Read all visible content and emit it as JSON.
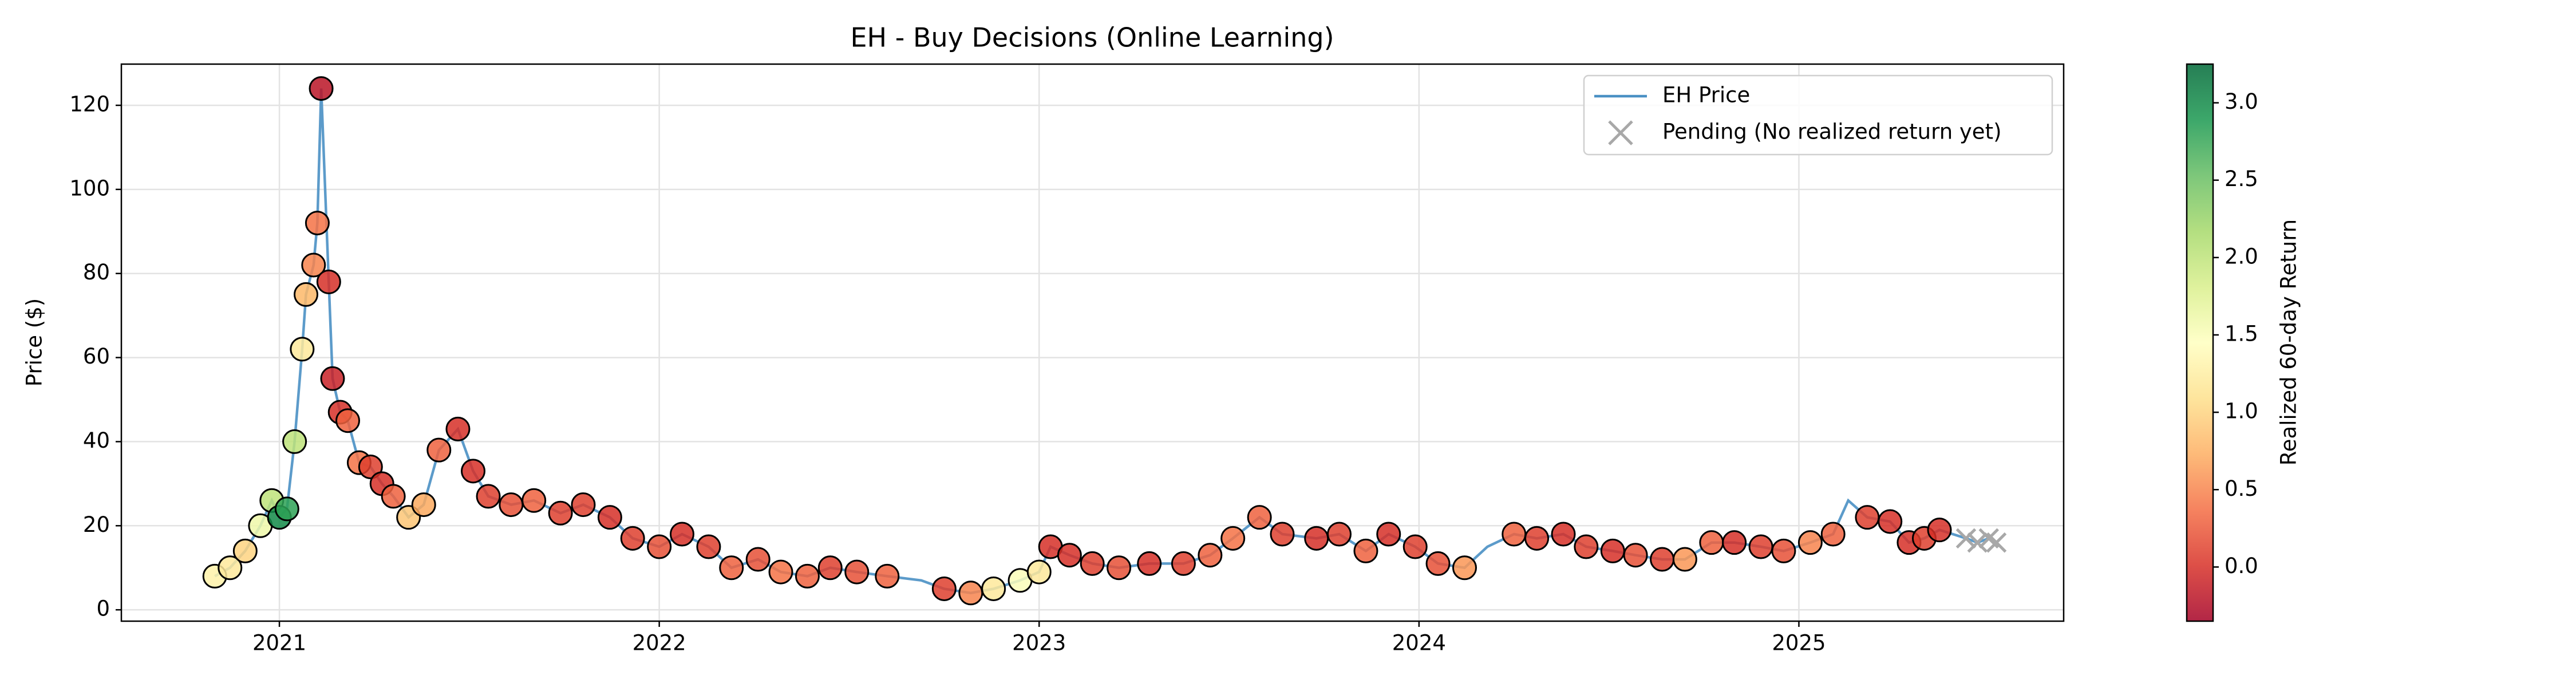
{
  "chart_data": {
    "type": "scatter",
    "title": "EH - Buy Decisions (Online Learning)",
    "y_label": "Price ($)",
    "xlim": [
      2020.584,
      2025.697
    ],
    "xticks": [
      2021,
      2022,
      2023,
      2024,
      2025
    ],
    "ylim": [
      -2.7,
      129.8
    ],
    "yticks": [
      0,
      20,
      40,
      60,
      80,
      100,
      120
    ],
    "grid": true,
    "legend": "upper right",
    "series": [
      {
        "name": "EH Price",
        "type": "line",
        "color": "#4a90c4",
        "x": [
          2020.83,
          2020.87,
          2020.91,
          2020.95,
          2020.98,
          2021.0,
          2021.02,
          2021.04,
          2021.06,
          2021.07,
          2021.09,
          2021.1,
          2021.11,
          2021.13,
          2021.14,
          2021.16,
          2021.18,
          2021.21,
          2021.24,
          2021.27,
          2021.3,
          2021.34,
          2021.38,
          2021.42,
          2021.47,
          2021.51,
          2021.55,
          2021.61,
          2021.67,
          2021.74,
          2021.8,
          2021.87,
          2021.93,
          2022.0,
          2022.06,
          2022.13,
          2022.19,
          2022.26,
          2022.32,
          2022.39,
          2022.45,
          2022.52,
          2022.6,
          2022.69,
          2022.75,
          2022.82,
          2022.88,
          2022.95,
          2023.0,
          2023.03,
          2023.08,
          2023.14,
          2023.21,
          2023.29,
          2023.38,
          2023.45,
          2023.51,
          2023.58,
          2023.64,
          2023.73,
          2023.79,
          2023.86,
          2023.92,
          2023.99,
          2024.05,
          2024.12,
          2024.18,
          2024.25,
          2024.31,
          2024.38,
          2024.44,
          2024.51,
          2024.57,
          2024.64,
          2024.7,
          2024.77,
          2024.83,
          2024.9,
          2024.96,
          2025.03,
          2025.09,
          2025.13,
          2025.18,
          2025.24,
          2025.29,
          2025.33,
          2025.37,
          2025.44,
          2025.47,
          2025.5,
          2025.52
        ],
        "values": [
          8,
          10,
          14,
          20,
          26,
          22,
          24,
          40,
          62,
          75,
          82,
          92,
          124,
          78,
          55,
          47,
          45,
          35,
          34,
          30,
          27,
          22,
          25,
          38,
          43,
          33,
          27,
          25,
          26,
          23,
          25,
          22,
          17,
          15,
          18,
          15,
          10,
          12,
          9,
          8,
          10,
          9,
          8,
          7,
          5,
          4,
          5,
          7,
          9,
          15,
          13,
          11,
          10,
          11,
          11,
          13,
          17,
          22,
          18,
          17,
          18,
          14,
          18,
          15,
          11,
          10,
          15,
          18,
          17,
          18,
          15,
          14,
          13,
          12,
          12,
          16,
          16,
          15,
          14,
          16,
          18,
          26,
          22,
          21,
          16,
          17,
          19,
          17,
          16,
          17,
          16
        ]
      },
      {
        "type": "scatter",
        "x": [
          2020.83,
          2020.87,
          2020.91,
          2020.95,
          2020.98,
          2021.0,
          2021.02,
          2021.04,
          2021.06,
          2021.07,
          2021.09,
          2021.1,
          2021.11,
          2021.13,
          2021.14,
          2021.16,
          2021.18,
          2021.21,
          2021.24,
          2021.27,
          2021.3,
          2021.34,
          2021.38,
          2021.42,
          2021.47,
          2021.51,
          2021.55,
          2021.61,
          2021.67,
          2021.74,
          2021.8,
          2021.87,
          2021.93,
          2022.0,
          2022.06,
          2022.13,
          2022.19,
          2022.26,
          2022.32,
          2022.39,
          2022.45,
          2022.52,
          2022.6,
          2022.75,
          2022.82,
          2022.88,
          2022.95,
          2023.0,
          2023.03,
          2023.08,
          2023.14,
          2023.21,
          2023.29,
          2023.38,
          2023.45,
          2023.51,
          2023.58,
          2023.64,
          2023.73,
          2023.79,
          2023.86,
          2023.92,
          2023.99,
          2024.05,
          2024.12,
          2024.25,
          2024.31,
          2024.38,
          2024.44,
          2024.51,
          2024.57,
          2024.64,
          2024.7,
          2024.77,
          2024.83,
          2024.9,
          2024.96,
          2025.03,
          2025.09,
          2025.18,
          2025.24,
          2025.29,
          2025.33,
          2025.37
        ],
        "values": [
          8,
          10,
          14,
          20,
          26,
          22,
          24,
          40,
          62,
          75,
          82,
          92,
          124,
          78,
          55,
          47,
          45,
          35,
          34,
          30,
          27,
          22,
          25,
          38,
          43,
          33,
          27,
          25,
          26,
          23,
          25,
          22,
          17,
          15,
          18,
          15,
          10,
          12,
          9,
          8,
          10,
          9,
          8,
          5,
          4,
          5,
          7,
          9,
          15,
          13,
          11,
          10,
          11,
          11,
          13,
          17,
          22,
          18,
          17,
          18,
          14,
          18,
          15,
          11,
          10,
          18,
          17,
          18,
          15,
          14,
          13,
          12,
          12,
          16,
          16,
          15,
          14,
          16,
          18,
          22,
          21,
          16,
          17,
          19
        ],
        "c": [
          1.3,
          1.2,
          1.0,
          1.6,
          2.0,
          3.0,
          2.8,
          2.0,
          1.2,
          0.8,
          0.5,
          0.4,
          -0.2,
          0.0,
          -0.1,
          0.0,
          0.3,
          0.4,
          0.1,
          0.0,
          0.3,
          0.9,
          0.7,
          0.3,
          0.0,
          0.0,
          0.1,
          0.2,
          0.3,
          0.1,
          0.1,
          0.0,
          0.1,
          0.2,
          0.0,
          0.1,
          0.3,
          0.2,
          0.4,
          0.3,
          0.1,
          0.2,
          0.3,
          0.1,
          0.5,
          1.2,
          1.5,
          1.2,
          0.0,
          0.0,
          0.1,
          0.2,
          0.0,
          0.1,
          0.3,
          0.4,
          0.3,
          0.1,
          0.0,
          0.1,
          0.3,
          0.0,
          0.1,
          0.2,
          0.6,
          0.3,
          0.1,
          0.0,
          0.1,
          0.0,
          0.2,
          0.1,
          0.6,
          0.3,
          0.0,
          0.1,
          0.2,
          0.5,
          0.3,
          0.1,
          0.0,
          0.0,
          0.1,
          0.0
        ]
      },
      {
        "name": "Pending (No realized return yet)",
        "type": "scatter",
        "marker": "x",
        "color": "#a8a8a8",
        "x": [
          2025.44,
          2025.47,
          2025.5,
          2025.52
        ],
        "values": [
          17,
          16,
          17,
          16
        ]
      }
    ],
    "colorbar": {
      "label": "Realized 60-day Return",
      "clim": [
        -0.35,
        3.25
      ],
      "ticks": [
        {
          "value": 0,
          "label": "0.0"
        },
        {
          "value": 0.5,
          "label": "0.5"
        },
        {
          "value": 1,
          "label": "1.0"
        },
        {
          "value": 1.5,
          "label": "1.5"
        },
        {
          "value": 2,
          "label": "2.0"
        },
        {
          "value": 2.5,
          "label": "2.5"
        },
        {
          "value": 3,
          "label": "3.0"
        }
      ]
    }
  }
}
